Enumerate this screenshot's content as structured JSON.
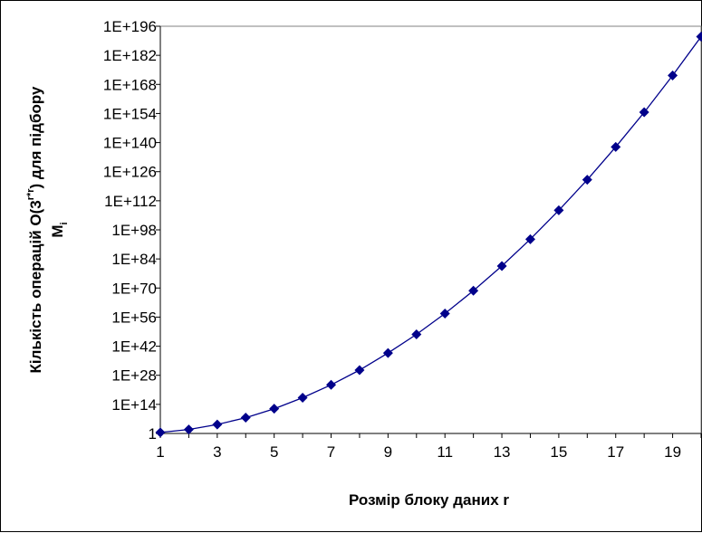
{
  "chart_data": {
    "type": "line",
    "xlabel": "Розмір блоку даних r",
    "ylabel_line1": "Кількість операцій O(3",
    "ylabel_sup": "r*r",
    "ylabel_line1_end": ") для підбору",
    "ylabel_line2": "M",
    "ylabel_line2_sub": "i",
    "y_scale": "log",
    "x_range": [
      1,
      20
    ],
    "y_range_exponent": [
      0,
      196
    ],
    "x_ticks": [
      "1",
      "3",
      "5",
      "7",
      "9",
      "11",
      "13",
      "15",
      "17",
      "19"
    ],
    "y_ticks": [
      "1",
      "1E+14",
      "1E+28",
      "1E+42",
      "1E+56",
      "1E+70",
      "1E+84",
      "1E+98",
      "1E+112",
      "1E+126",
      "1E+140",
      "1E+154",
      "1E+168",
      "1E+182",
      "1E+196"
    ],
    "grid": false,
    "marker": "diamond",
    "series": [
      {
        "color": "#00008B",
        "x": [
          1,
          2,
          3,
          4,
          5,
          6,
          7,
          8,
          9,
          10,
          11,
          12,
          13,
          14,
          15,
          16,
          17,
          18,
          19,
          20
        ],
        "y_exponent": [
          0.5,
          1.9,
          4.3,
          7.6,
          11.9,
          17.2,
          23.4,
          30.5,
          38.7,
          47.7,
          57.7,
          68.7,
          80.6,
          93.5,
          107.4,
          122.1,
          137.9,
          154.6,
          172.3,
          191.0
        ]
      }
    ]
  }
}
